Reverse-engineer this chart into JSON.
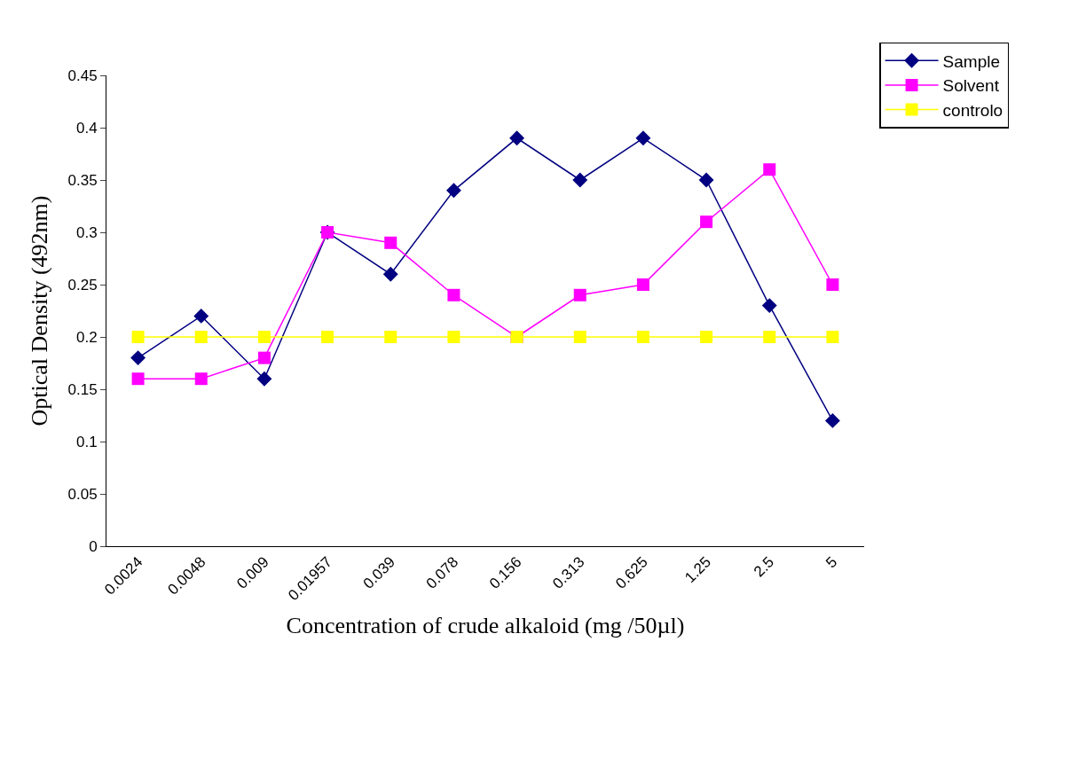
{
  "chart_data": {
    "type": "line",
    "xlabel": "Concentration of crude alkaloid (mg /50µl)",
    "ylabel": "Optical Density (492nm)",
    "categories": [
      "0.0024",
      "0.0048",
      "0.009",
      "0.01957",
      "0.039",
      "0.078",
      "0.156",
      "0.313",
      "0.625",
      "1.25",
      "2.5",
      "5"
    ],
    "series": [
      {
        "name": "Sample",
        "color": "#000080",
        "marker": "diamond",
        "values": [
          0.18,
          0.22,
          0.16,
          0.3,
          0.26,
          0.34,
          0.39,
          0.35,
          0.39,
          0.35,
          0.23,
          0.12
        ]
      },
      {
        "name": "Solvent",
        "color": "#ff00ff",
        "marker": "square",
        "values": [
          0.16,
          0.16,
          0.18,
          0.3,
          0.29,
          0.24,
          0.2,
          0.24,
          0.25,
          0.31,
          0.36,
          0.25
        ]
      },
      {
        "name": "controlo",
        "color": "#ffff00",
        "marker": "square",
        "values": [
          0.2,
          0.2,
          0.2,
          0.2,
          0.2,
          0.2,
          0.2,
          0.2,
          0.2,
          0.2,
          0.2,
          0.2
        ]
      }
    ],
    "ylim": [
      0,
      0.45
    ],
    "yticks": [
      0,
      0.05,
      0.1,
      0.15,
      0.2,
      0.25,
      0.3,
      0.35,
      0.4,
      0.45
    ],
    "legend": "top right"
  }
}
